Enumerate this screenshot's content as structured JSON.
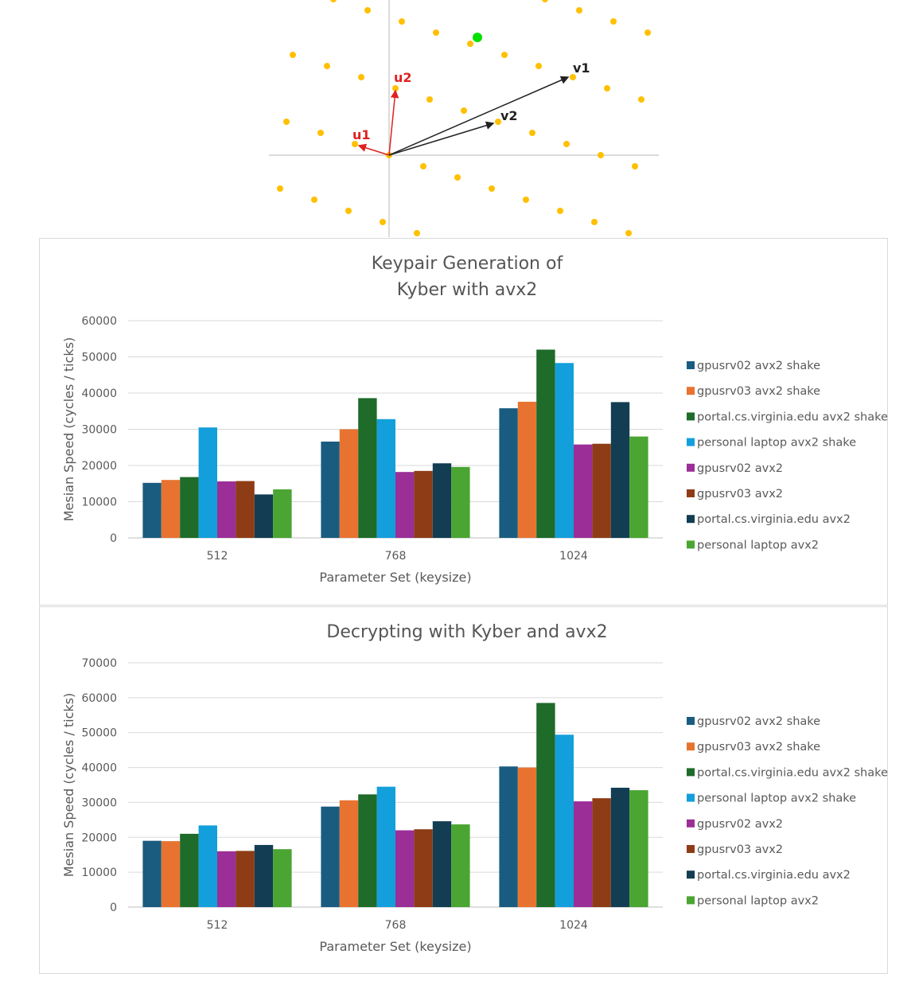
{
  "colors": [
    "#1a5c80",
    "#e87330",
    "#1e6b2a",
    "#139fdb",
    "#9b2e97",
    "#8e3c16",
    "#123d52",
    "#4aa532"
  ],
  "lattice": {
    "point_color": "#ffc000",
    "highlight_color": "#00e000",
    "u_color": "#e02020",
    "v_color": "#222222",
    "u1_label": "u1",
    "u2_label": "u2",
    "v1_label": "v1",
    "v2_label": "v2"
  },
  "chart_data": [
    {
      "type": "bar",
      "title_lines": [
        "Keypair Generation of",
        "Kyber with avx2"
      ],
      "xlabel": "Parameter Set (keysize)",
      "ylabel": "Mesian Speed (cycles / ticks)",
      "ylim": [
        0,
        60000
      ],
      "yticks": [
        0,
        10000,
        20000,
        30000,
        40000,
        50000,
        60000
      ],
      "grid": true,
      "legend_position": "right",
      "categories": [
        "512",
        "768",
        "1024"
      ],
      "series": [
        {
          "name": "gpusrv02 avx2 shake",
          "values": [
            15200,
            26600,
            35800
          ]
        },
        {
          "name": "gpusrv03 avx2 shake",
          "values": [
            16000,
            30000,
            37600
          ]
        },
        {
          "name": "portal.cs.virginia.edu avx2 shake",
          "values": [
            16800,
            38600,
            52000
          ]
        },
        {
          "name": "personal laptop avx2 shake",
          "values": [
            30500,
            32800,
            48300
          ]
        },
        {
          "name": "gpusrv02 avx2",
          "values": [
            15600,
            18200,
            25800
          ]
        },
        {
          "name": "gpusrv03 avx2",
          "values": [
            15700,
            18500,
            26000
          ]
        },
        {
          "name": "portal.cs.virginia.edu avx2",
          "values": [
            12000,
            20600,
            37500
          ]
        },
        {
          "name": "personal laptop avx2",
          "values": [
            13400,
            19600,
            28000
          ]
        }
      ]
    },
    {
      "type": "bar",
      "title_lines": [
        "Decrypting with Kyber and avx2"
      ],
      "xlabel": "Parameter Set (keysize)",
      "ylabel": "Mesian Speed (cycles / ticks)",
      "ylim": [
        0,
        70000
      ],
      "yticks": [
        0,
        10000,
        20000,
        30000,
        40000,
        50000,
        60000,
        70000
      ],
      "grid": true,
      "legend_position": "right",
      "categories": [
        "512",
        "768",
        "1024"
      ],
      "series": [
        {
          "name": "gpusrv02 avx2 shake",
          "values": [
            19000,
            28800,
            40300
          ]
        },
        {
          "name": "gpusrv03 avx2 shake",
          "values": [
            18900,
            30600,
            40000
          ]
        },
        {
          "name": "portal.cs.virginia.edu avx2 shake",
          "values": [
            21000,
            32300,
            58500
          ]
        },
        {
          "name": "personal laptop avx2 shake",
          "values": [
            23400,
            34500,
            49400
          ]
        },
        {
          "name": "gpusrv02 avx2",
          "values": [
            16000,
            22000,
            30300
          ]
        },
        {
          "name": "gpusrv03 avx2",
          "values": [
            16100,
            22300,
            31200
          ]
        },
        {
          "name": "portal.cs.virginia.edu avx2",
          "values": [
            17800,
            24600,
            34200
          ]
        },
        {
          "name": "personal laptop avx2",
          "values": [
            16600,
            23700,
            33500
          ]
        }
      ]
    }
  ]
}
